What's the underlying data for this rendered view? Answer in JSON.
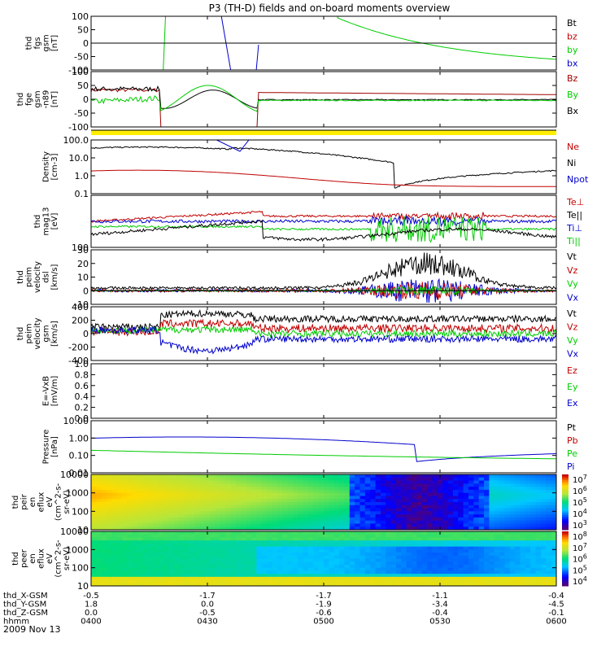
{
  "title": "P3 (TH-D) fields and on-board moments overview",
  "date": "2009 Nov 13",
  "x_axis": {
    "ticks": [
      "0400",
      "0430",
      "0500",
      "0530",
      "0600"
    ],
    "rows": [
      {
        "label": "thd_X-GSM",
        "values": [
          "-0.5",
          "-1.7",
          "-1.7",
          "-1.1",
          "-0.4"
        ]
      },
      {
        "label": "thd_Y-GSM",
        "values": [
          "1.8",
          "0.0",
          "-1.9",
          "-3.4",
          "-4.5"
        ]
      },
      {
        "label": "thd_Z-GSM",
        "values": [
          "0.0",
          "-0.5",
          "-0.6",
          "-0.4",
          "-0.1"
        ]
      },
      {
        "label": "hhmm",
        "values": [
          "0400",
          "0430",
          "0500",
          "0530",
          "0600"
        ]
      }
    ]
  },
  "colors": {
    "black": "#000000",
    "red": "#c00000",
    "darkred": "#a00000",
    "green": "#00cc00",
    "blue": "#0000cc",
    "yellow": "#ffee00"
  },
  "chart_data": [
    {
      "type": "line",
      "name": "fgs",
      "ylabel_lines": [
        "thd",
        "fgs",
        "gsm",
        "[nT]"
      ],
      "ylim": [
        -100,
        100
      ],
      "ticks": [
        "100",
        "50",
        "0",
        "-50",
        "-100"
      ],
      "legend": [
        {
          "label": "Bt",
          "color": "#000000"
        },
        {
          "label": "bz",
          "color": "#c00000"
        },
        {
          "label": "by",
          "color": "#00cc00"
        },
        {
          "label": "bx",
          "color": "#0000cc"
        }
      ]
    },
    {
      "type": "line",
      "name": "fge",
      "ylabel_lines": [
        "thd",
        "fge",
        "gsm",
        "-n89",
        "[nT]"
      ],
      "ylim": [
        -120,
        120
      ],
      "ticks": [
        "100",
        "50",
        "0",
        "-50",
        "-100"
      ],
      "legend": [
        {
          "label": "Bz",
          "color": "#a00000"
        },
        {
          "label": "By",
          "color": "#00cc00"
        },
        {
          "label": "Bx",
          "color": "#000000"
        }
      ]
    },
    {
      "type": "line",
      "name": "density",
      "log": true,
      "ylabel_lines": [
        "Density",
        "[cm-3]"
      ],
      "ylim": [
        0.1,
        100
      ],
      "ticks": [
        "100.0",
        "10.0",
        "1.0",
        "0.1"
      ],
      "legend": [
        {
          "label": "Ne",
          "color": "#c00000"
        },
        {
          "label": "Ni",
          "color": "#000000"
        },
        {
          "label": "Npot",
          "color": "#0000cc"
        }
      ]
    },
    {
      "type": "line",
      "name": "temperature",
      "log": true,
      "ylabel_lines": [
        "thd",
        "mag13",
        "[eV]"
      ],
      "ticks": [
        "100"
      ],
      "legend": [
        {
          "label": "Te⊥",
          "color": "#c00000"
        },
        {
          "label": "Te||",
          "color": "#000000"
        },
        {
          "label": "Ti⊥",
          "color": "#0000cc"
        },
        {
          "label": "Ti||",
          "color": "#00cc00"
        }
      ]
    },
    {
      "type": "line",
      "name": "velocity-dsl",
      "ylabel_lines": [
        "thd",
        "peim",
        "velocity",
        "dsl",
        "[km/s]"
      ],
      "ylim": [
        -10,
        30
      ],
      "ticks": [
        "30",
        "20",
        "10",
        "0",
        "-10"
      ],
      "legend": [
        {
          "label": "Vt",
          "color": "#000000"
        },
        {
          "label": "Vz",
          "color": "#c00000"
        },
        {
          "label": "Vy",
          "color": "#00cc00"
        },
        {
          "label": "Vx",
          "color": "#0000cc"
        }
      ]
    },
    {
      "type": "line",
      "name": "velocity-gsm",
      "ylabel_lines": [
        "thd",
        "peim",
        "velocity",
        "gsm",
        "[km/s]"
      ],
      "ylim": [
        -400,
        400
      ],
      "ticks": [
        "400",
        "200",
        "0",
        "-200",
        "-400"
      ],
      "legend": [
        {
          "label": "Vt",
          "color": "#000000"
        },
        {
          "label": "Vz",
          "color": "#c00000"
        },
        {
          "label": "Vy",
          "color": "#00cc00"
        },
        {
          "label": "Vx",
          "color": "#0000cc"
        }
      ]
    },
    {
      "type": "line",
      "name": "efield",
      "ylabel_lines": [
        "E=-VxB",
        "[mV/m]"
      ],
      "ylim": [
        0,
        1
      ],
      "ticks": [
        "1.0",
        "0.8",
        "0.6",
        "0.4",
        "0.2",
        "0.0"
      ],
      "legend": [
        {
          "label": "Ez",
          "color": "#c00000"
        },
        {
          "label": "Ey",
          "color": "#00cc00"
        },
        {
          "label": "Ex",
          "color": "#0000cc"
        }
      ]
    },
    {
      "type": "line",
      "name": "pressure",
      "log": true,
      "ylabel_lines": [
        "Pressure",
        "[nPa]"
      ],
      "ylim": [
        0.005,
        20
      ],
      "ticks": [
        "10.00",
        "1.00",
        "0.10",
        "0.01"
      ],
      "legend": [
        {
          "label": "Pt",
          "color": "#000000"
        },
        {
          "label": "Pb",
          "color": "#c00000"
        },
        {
          "label": "Pe",
          "color": "#00cc00"
        },
        {
          "label": "Pi",
          "color": "#0000cc"
        }
      ]
    },
    {
      "type": "heatmap",
      "name": "ion-spectrogram",
      "ylabel_lines": [
        "thd",
        "peir",
        "en",
        "eflux",
        "eV",
        "(cm^2-s-",
        "sr-eV)"
      ],
      "ticks": [
        "10000",
        "1000",
        "100",
        "10"
      ],
      "colorbar_ticks": [
        "10^7",
        "10^6",
        "10^5",
        "10^4",
        "10^3"
      ]
    },
    {
      "type": "heatmap",
      "name": "electron-spectrogram",
      "ylabel_lines": [
        "thd",
        "peer",
        "en",
        "eflux",
        "eV",
        "(cm^2-s-",
        "sr-eV)"
      ],
      "ticks": [
        "10000",
        "1000",
        "100",
        "10"
      ],
      "colorbar_ticks": [
        "10^8",
        "10^7",
        "10^6",
        "10^5",
        "10^4"
      ]
    }
  ]
}
